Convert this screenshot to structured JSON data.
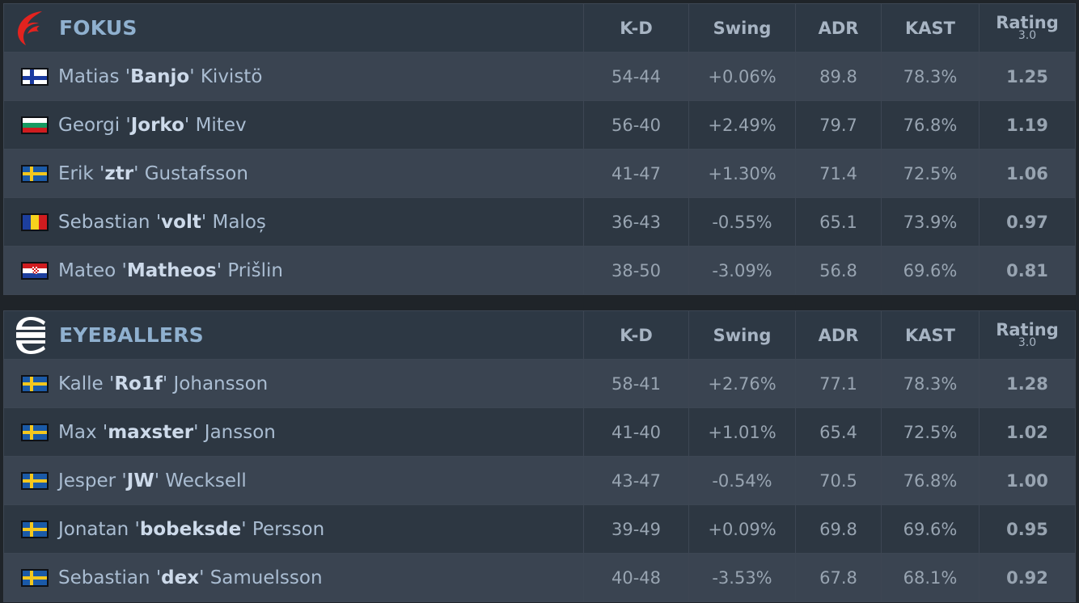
{
  "columns": {
    "kd": "K-D",
    "swing": "Swing",
    "adr": "ADR",
    "kast": "KAST",
    "rating": "Rating",
    "rating_version": "3.0"
  },
  "colors": {
    "positive": "#1ec11e",
    "negative": "#e8282b",
    "neutral": "#98a4b1"
  },
  "teams": [
    {
      "name": "FOKUS",
      "logo_icon": "red-wing-logo-icon",
      "players": [
        {
          "first": "Matias",
          "nick": "Banjo",
          "last": "Kivistö",
          "flag": "finland-flag-icon",
          "kd": "54-44",
          "swing": "+0.06%",
          "swing_tone": "neu",
          "adr": "89.8",
          "kast": "78.3%",
          "rating": "1.25",
          "rating_tone": "good"
        },
        {
          "first": "Georgi",
          "nick": "Jorko",
          "last": "Mitev",
          "flag": "bulgaria-flag-icon",
          "kd": "56-40",
          "swing": "+2.49%",
          "swing_tone": "pos",
          "adr": "79.7",
          "kast": "76.8%",
          "rating": "1.19",
          "rating_tone": "good"
        },
        {
          "first": "Erik",
          "nick": "ztr",
          "last": "Gustafsson",
          "flag": "sweden-flag-icon",
          "kd": "41-47",
          "swing": "+1.30%",
          "swing_tone": "pos",
          "adr": "71.4",
          "kast": "72.5%",
          "rating": "1.06",
          "rating_tone": "good"
        },
        {
          "first": "Sebastian",
          "nick": "volt",
          "last": "Maloș",
          "flag": "romania-flag-icon",
          "kd": "36-43",
          "swing": "-0.55%",
          "swing_tone": "neu",
          "adr": "65.1",
          "kast": "73.9%",
          "rating": "0.97",
          "rating_tone": "avg"
        },
        {
          "first": "Mateo",
          "nick": "Matheos",
          "last": "Prišlin",
          "flag": "croatia-flag-icon",
          "kd": "38-50",
          "swing": "-3.09%",
          "swing_tone": "neg",
          "adr": "56.8",
          "kast": "69.6%",
          "rating": "0.81",
          "rating_tone": "bad"
        }
      ]
    },
    {
      "name": "EYEBALLERS",
      "logo_icon": "eyeballers-logo-icon",
      "players": [
        {
          "first": "Kalle",
          "nick": "Ro1f",
          "last": "Johansson",
          "flag": "sweden-flag-icon",
          "kd": "58-41",
          "swing": "+2.76%",
          "swing_tone": "pos",
          "adr": "77.1",
          "kast": "78.3%",
          "rating": "1.28",
          "rating_tone": "good"
        },
        {
          "first": "Max",
          "nick": "maxster",
          "last": "Jansson",
          "flag": "sweden-flag-icon",
          "kd": "41-40",
          "swing": "+1.01%",
          "swing_tone": "pos",
          "adr": "65.4",
          "kast": "72.5%",
          "rating": "1.02",
          "rating_tone": "avg"
        },
        {
          "first": "Jesper",
          "nick": "JW",
          "last": "Wecksell",
          "flag": "sweden-flag-icon",
          "kd": "43-47",
          "swing": "-0.54%",
          "swing_tone": "neu",
          "adr": "70.5",
          "kast": "76.8%",
          "rating": "1.00",
          "rating_tone": "avg"
        },
        {
          "first": "Jonatan",
          "nick": "bobeksde",
          "last": "Persson",
          "flag": "sweden-flag-icon",
          "kd": "39-49",
          "swing": "+0.09%",
          "swing_tone": "neu",
          "adr": "69.8",
          "kast": "69.6%",
          "rating": "0.95",
          "rating_tone": "bad"
        },
        {
          "first": "Sebastian",
          "nick": "dex",
          "last": "Samuelsson",
          "flag": "sweden-flag-icon",
          "kd": "40-48",
          "swing": "-3.53%",
          "swing_tone": "neg",
          "adr": "67.8",
          "kast": "68.1%",
          "rating": "0.92",
          "rating_tone": "bad"
        }
      ]
    }
  ]
}
